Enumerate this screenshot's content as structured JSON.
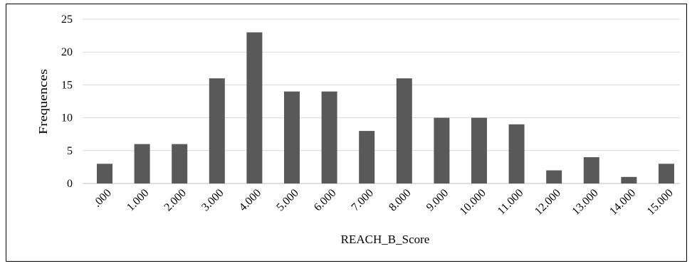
{
  "chart_data": {
    "type": "bar",
    "title": "",
    "xlabel": "REACH_B_Score",
    "ylabel": "Frequences",
    "categories": [
      ".000",
      "1.000",
      "2.000",
      "3.000",
      "4.000",
      "5.000",
      "6.000",
      "7.000",
      "8.000",
      "9.000",
      "10.000",
      "11.000",
      "12.000",
      "13.000",
      "14.000",
      "15.000"
    ],
    "values": [
      3,
      6,
      6,
      16,
      23,
      14,
      14,
      8,
      16,
      10,
      10,
      9,
      2,
      4,
      1,
      3
    ],
    "ylim": [
      0,
      25
    ],
    "yticks": [
      0,
      5,
      10,
      15,
      20,
      25
    ],
    "grid": true,
    "bar_color": "#595959",
    "grid_color": "#d9d9d9"
  }
}
